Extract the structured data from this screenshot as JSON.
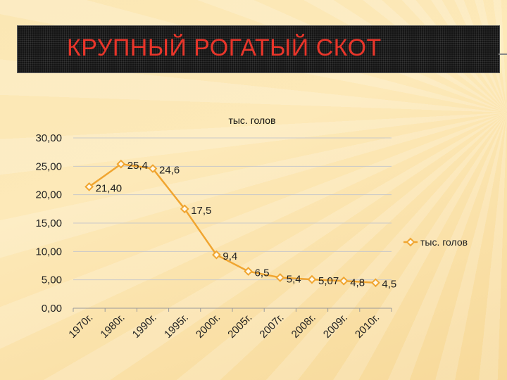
{
  "slide": {
    "title": "КРУПНЫЙ РОГАТЫЙ СКОТ"
  },
  "chart_data": {
    "type": "line",
    "title": "тыс. голов",
    "xlabel": "",
    "ylabel": "",
    "categories": [
      "1970г.",
      "1980г.",
      "1990г.",
      "1995г.",
      "2000г.",
      "2005г.",
      "2007г.",
      "2008г.",
      "2009г.",
      "2010г."
    ],
    "series": [
      {
        "name": "тыс. голов",
        "values": [
          21.4,
          25.4,
          24.6,
          17.5,
          9.4,
          6.5,
          5.4,
          5.07,
          4.8,
          4.5
        ],
        "labels": [
          "21,40",
          "25,4",
          "24,6",
          "17,5",
          "9,4",
          "6,5",
          "5,4",
          "5,07",
          "4,8",
          "4,5"
        ],
        "color": "#f0a530"
      }
    ],
    "ylim": [
      0,
      30
    ],
    "yticks": [
      0,
      5,
      10,
      15,
      20,
      25,
      30
    ],
    "ytick_labels": [
      "0,00",
      "5,00",
      "10,00",
      "15,00",
      "20,00",
      "25,00",
      "30,00"
    ],
    "grid": true,
    "legend_position": "right"
  }
}
